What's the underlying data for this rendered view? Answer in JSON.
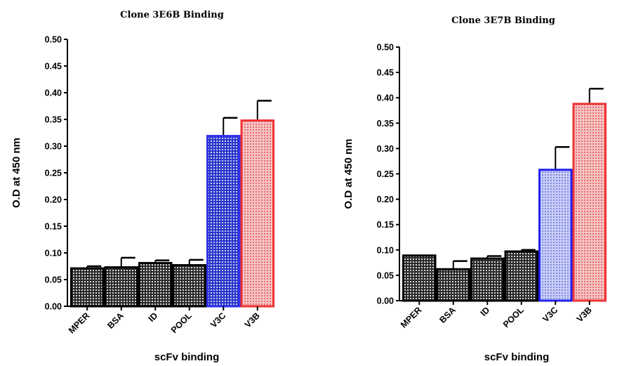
{
  "chart_data": [
    {
      "type": "bar",
      "title": "Clone 3E6B Binding",
      "xlabel": "scFv binding",
      "ylabel": "O.D at 450 nm",
      "ylim": [
        0,
        0.5
      ],
      "yticks": [
        "0.00",
        "0.05",
        "0.10",
        "0.15",
        "0.20",
        "0.25",
        "0.30",
        "0.35",
        "0.40",
        "0.45",
        "0.50"
      ],
      "categories": [
        "MPER",
        "BSA",
        "ID",
        "POOL",
        "V3C",
        "V3B"
      ],
      "values": [
        0.071,
        0.073,
        0.081,
        0.077,
        0.319,
        0.348
      ],
      "errors": [
        0.004,
        0.018,
        0.005,
        0.01,
        0.034,
        0.037
      ],
      "colors": [
        "#000000",
        "#000000",
        "#000000",
        "#000000",
        "#3333ee",
        "#ee3333"
      ],
      "fills": [
        "#5a5a5a",
        "#5a5a5a",
        "#5a5a5a",
        "#5a5a5a",
        "#3d49d8",
        "#f0a0a0"
      ],
      "grid": false,
      "legend": "none"
    },
    {
      "type": "bar",
      "title": "Clone 3E7B Binding",
      "xlabel": "scFv binding",
      "ylabel": "O.D at 450 nm",
      "ylim": [
        0,
        0.5
      ],
      "yticks": [
        "0.00",
        "0.05",
        "0.10",
        "0.15",
        "0.20",
        "0.25",
        "0.30",
        "0.35",
        "0.40",
        "0.45",
        "0.50"
      ],
      "categories": [
        "MPER",
        "BSA",
        "ID",
        "POOL",
        "V3C",
        "V3B"
      ],
      "values": [
        0.089,
        0.062,
        0.083,
        0.097,
        0.258,
        0.388
      ],
      "errors": [
        0.0,
        0.016,
        0.005,
        0.003,
        0.045,
        0.03
      ],
      "colors": [
        "#000000",
        "#000000",
        "#000000",
        "#000000",
        "#2222ee",
        "#ee3333"
      ],
      "fills": [
        "#5a5a5a",
        "#5a5a5a",
        "#5a5a5a",
        "#5a5a5a",
        "#b8c0f0",
        "#f0a8a8"
      ],
      "grid": false,
      "legend": "none"
    }
  ]
}
